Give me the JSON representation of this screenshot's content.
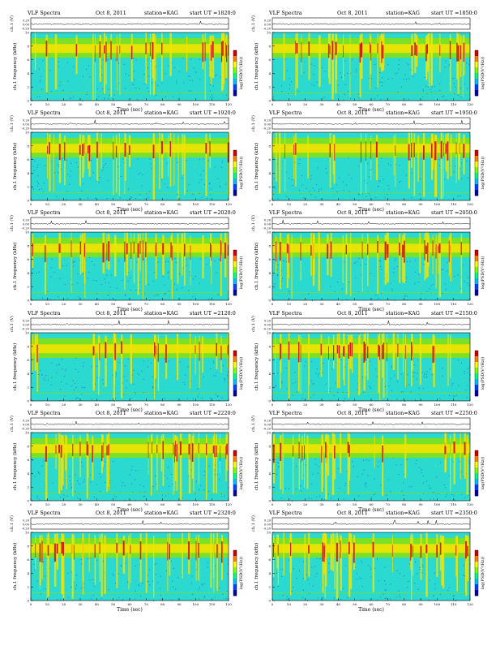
{
  "figure": {
    "panel_header": {
      "kind": "VLF Spectra",
      "date": "Oct 8, 2011",
      "station": "station=KAG",
      "start_prefix": "start UT ="
    },
    "ylabel_top": "ch.1 (V)",
    "ylabel_main": "ch.1 frequency (kHz)",
    "xlabel": "Time (sec)",
    "colorbar_label": "log(PSD(V²/Hz))",
    "xticks": [
      "0",
      "10",
      "20",
      "30",
      "40",
      "50",
      "60",
      "70",
      "80",
      "90",
      "100",
      "110",
      "120"
    ],
    "yticks": [
      "0",
      "2",
      "4",
      "6",
      "8",
      "10"
    ],
    "top_yticks": [
      "0.20",
      "0.00",
      "-0.20"
    ],
    "colors": {
      "background": "#2ad9d0",
      "mid": "#7fe01f",
      "high": "#f2e400",
      "peak": "#d42010"
    }
  },
  "chart_data": [
    {
      "type": "heatmap",
      "start_ut": "1820:0",
      "header": {
        "title": "VLF Spectra",
        "date": "Oct 8, 2011",
        "station": "station=KAG",
        "start": "start UT =1820:0"
      },
      "xlabel": "Time (sec)",
      "ylabel": "ch.1 frequency (kHz)",
      "xlim": [
        0,
        120
      ],
      "ylim": [
        0,
        10
      ],
      "top_ylim": [
        -0.2,
        0.2
      ]
    },
    {
      "type": "heatmap",
      "start_ut": "1850:0",
      "header": {
        "title": "VLF Spectra",
        "date": "Oct 8, 2011",
        "station": "station=KAG",
        "start": "start UT =1850:0"
      },
      "xlabel": "Time (sec)",
      "ylabel": "ch.1 frequency (kHz)",
      "xlim": [
        0,
        120
      ],
      "ylim": [
        0,
        10
      ],
      "top_ylim": [
        -0.2,
        0.2
      ]
    },
    {
      "type": "heatmap",
      "start_ut": "1920:0",
      "header": {
        "title": "VLF Spectra",
        "date": "Oct 8, 2011",
        "station": "station=KAG",
        "start": "start UT =1920:0"
      },
      "xlabel": "Time (sec)",
      "ylabel": "ch.1 frequency (kHz)",
      "xlim": [
        0,
        120
      ],
      "ylim": [
        0,
        10
      ],
      "top_ylim": [
        -0.2,
        0.2
      ]
    },
    {
      "type": "heatmap",
      "start_ut": "1950:0",
      "header": {
        "title": "VLF Spectra",
        "date": "Oct 8, 2011",
        "station": "station=KAG",
        "start": "start UT =1950:0"
      },
      "xlabel": "Time (sec)",
      "ylabel": "ch.1 frequency (kHz)",
      "xlim": [
        0,
        120
      ],
      "ylim": [
        0,
        10
      ],
      "top_ylim": [
        -0.2,
        0.2
      ]
    },
    {
      "type": "heatmap",
      "start_ut": "2020:0",
      "header": {
        "title": "VLF Spectra",
        "date": "Oct 8, 2011",
        "station": "station=KAG",
        "start": "start UT =2020:0"
      },
      "xlabel": "Time (sec)",
      "ylabel": "ch.1 frequency (kHz)",
      "xlim": [
        0,
        120
      ],
      "ylim": [
        0,
        10
      ],
      "top_ylim": [
        -0.2,
        0.2
      ]
    },
    {
      "type": "heatmap",
      "start_ut": "2050:0",
      "header": {
        "title": "VLF Spectra",
        "date": "Oct 8, 2011",
        "station": "station=KAG",
        "start": "start UT =2050:0"
      },
      "xlabel": "Time (sec)",
      "ylabel": "ch.1 frequency (kHz)",
      "xlim": [
        0,
        120
      ],
      "ylim": [
        0,
        10
      ],
      "top_ylim": [
        -0.2,
        0.2
      ]
    },
    {
      "type": "heatmap",
      "start_ut": "2120:0",
      "header": {
        "title": "VLF Spectra",
        "date": "Oct 8, 2011",
        "station": "station=KAG",
        "start": "start UT =2120:0"
      },
      "xlabel": "Time (sec)",
      "ylabel": "ch.1 frequency (kHz)",
      "xlim": [
        0,
        120
      ],
      "ylim": [
        0,
        10
      ],
      "top_ylim": [
        -0.2,
        0.2
      ]
    },
    {
      "type": "heatmap",
      "start_ut": "2150:0",
      "header": {
        "title": "VLF Spectra",
        "date": "Oct 8, 2011",
        "station": "station=KAG",
        "start": "start UT =2150:0"
      },
      "xlabel": "Time (sec)",
      "ylabel": "ch.1 frequency (kHz)",
      "xlim": [
        0,
        120
      ],
      "ylim": [
        0,
        10
      ],
      "top_ylim": [
        -0.2,
        0.2
      ]
    },
    {
      "type": "heatmap",
      "start_ut": "2220:0",
      "header": {
        "title": "VLF Spectra",
        "date": "Oct 8, 2011",
        "station": "station=KAG",
        "start": "start UT =2220:0"
      },
      "xlabel": "Time (sec)",
      "ylabel": "ch.1 frequency (kHz)",
      "xlim": [
        0,
        120
      ],
      "ylim": [
        0,
        10
      ],
      "top_ylim": [
        -0.2,
        0.2
      ]
    },
    {
      "type": "heatmap",
      "start_ut": "2250:0",
      "header": {
        "title": "VLF Spectra",
        "date": "Oct 8, 2011",
        "station": "station=KAG",
        "start": "start UT =2250:0"
      },
      "xlabel": "Time (sec)",
      "ylabel": "ch.1 frequency (kHz)",
      "xlim": [
        0,
        120
      ],
      "ylim": [
        0,
        10
      ],
      "top_ylim": [
        -0.2,
        0.2
      ]
    },
    {
      "type": "heatmap",
      "start_ut": "2320:0",
      "header": {
        "title": "VLF Spectra",
        "date": "Oct 8, 2011",
        "station": "station=KAG",
        "start": "start UT =2320:0"
      },
      "xlabel": "Time (sec)",
      "ylabel": "ch.1 frequency (kHz)",
      "xlim": [
        0,
        120
      ],
      "ylim": [
        0,
        10
      ],
      "top_ylim": [
        -0.2,
        0.2
      ]
    },
    {
      "type": "heatmap",
      "start_ut": "2350:0",
      "header": {
        "title": "VLF Spectra",
        "date": "Oct 8, 2011",
        "station": "station=KAG",
        "start": "start UT =2350:0"
      },
      "xlabel": "Time (sec)",
      "ylabel": "ch.1 frequency (kHz)",
      "xlim": [
        0,
        120
      ],
      "ylim": [
        0,
        10
      ],
      "top_ylim": [
        -0.2,
        0.2
      ]
    }
  ]
}
